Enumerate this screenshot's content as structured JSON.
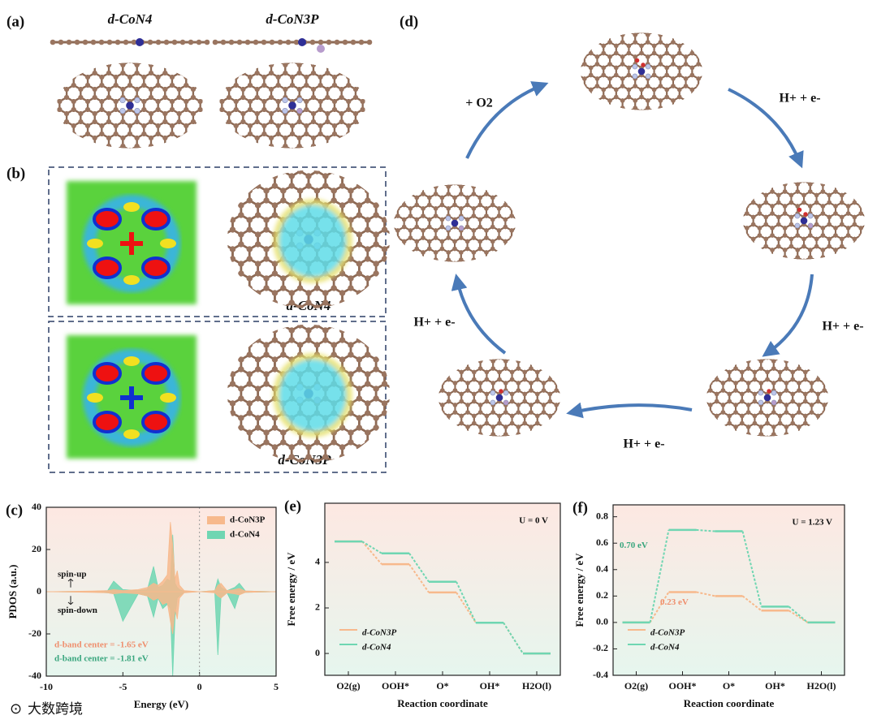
{
  "panels": {
    "a": {
      "label": "(a)",
      "titles": [
        "d-CoN4",
        "d-CoN3P"
      ]
    },
    "b": {
      "label": "(b)",
      "titles": [
        "d-CoN4",
        "d-CoN3P"
      ]
    },
    "d": {
      "label": "(d)",
      "steps": [
        "+ O2",
        "H+ + e-",
        "H+ + e-",
        "H+ + e-",
        "H+ + e-"
      ]
    }
  },
  "chart_data": [
    {
      "type": "pdos",
      "panel_label": "(c)",
      "xlabel": "Energy (eV)",
      "ylabel": "PDOS (a.u.)",
      "xlim": [
        -10,
        5
      ],
      "ylim": [
        -40,
        40
      ],
      "xticks": [
        -10,
        -5,
        0,
        5
      ],
      "yticks": [
        -40,
        -20,
        0,
        20,
        40
      ],
      "x": [
        -10,
        -7,
        -6,
        -5.6,
        -5,
        -4,
        -3.4,
        -3,
        -2.7,
        -2.4,
        -2.1,
        -1.9,
        -1.75,
        -1.6,
        -1.45,
        -1.3,
        -1,
        0,
        1,
        1.2,
        1.4,
        1.8,
        2.3,
        2.6,
        3,
        5
      ],
      "legend": "upper right",
      "series": [
        {
          "name": "d-CoN3P",
          "color": "#f7b98c",
          "values": [
            0,
            0.3,
            0.5,
            1,
            0.5,
            1,
            2,
            4,
            3,
            5,
            8,
            33,
            22,
            6,
            10,
            3,
            0.5,
            0,
            0.5,
            3,
            4,
            0.5,
            1,
            1.5,
            0.3,
            0
          ],
          "values_down": [
            0,
            -0.3,
            -0.5,
            -1,
            -0.5,
            -1,
            -2,
            -4,
            -3,
            -6,
            -5,
            -14,
            -20,
            -8,
            -13,
            -3,
            -0.5,
            0,
            -0.5,
            -2,
            -3,
            -0.5,
            -1,
            -1.5,
            -0.3,
            0
          ]
        },
        {
          "name": "d-CoN4",
          "color": "#6fd6b2",
          "values": [
            0,
            0.2,
            0.5,
            5,
            1,
            0.5,
            1,
            12,
            2,
            3,
            6,
            5,
            27,
            4,
            2,
            1,
            0.2,
            0,
            0.5,
            6,
            2,
            0.5,
            2,
            4,
            0.3,
            0
          ],
          "values_down": [
            0,
            -0.2,
            -0.5,
            -1,
            -14,
            -1,
            -2,
            -12,
            -3,
            -8,
            -6,
            -8,
            -40,
            -12,
            -3,
            -2,
            -0.3,
            0,
            -0.3,
            -30,
            -3,
            -0.5,
            -8,
            -1,
            -0.3,
            0
          ]
        }
      ],
      "annotations": [
        {
          "text": "spin-up"
        },
        {
          "text": "spin-down"
        },
        {
          "text": "d-band center = -1.65 eV",
          "color": "#ef8f6e"
        },
        {
          "text": "d-band center = -1.81 eV",
          "color": "#3aa67e"
        }
      ]
    },
    {
      "type": "step",
      "panel_label": "(e)",
      "condition": "U = 0 V",
      "xlabel": "Reaction coordinate",
      "ylabel": "Free energy / eV",
      "categories": [
        "O2(g)",
        "OOH*",
        "O*",
        "OH*",
        "H2O(l)"
      ],
      "ylim": [
        -0.96,
        6.6
      ],
      "yticks": [
        0,
        2,
        4
      ],
      "legend": "lower left",
      "series": [
        {
          "name": "d-CoN3P",
          "color": "#f7b98c",
          "values": [
            4.92,
            3.92,
            2.68,
            1.35,
            0
          ]
        },
        {
          "name": "d-CoN4",
          "color": "#6fd6b2",
          "values": [
            4.92,
            4.4,
            3.15,
            1.35,
            0
          ]
        }
      ],
      "annotations": []
    },
    {
      "type": "step",
      "panel_label": "(f)",
      "condition": "U = 1.23 V",
      "xlabel": "Reaction coordinate",
      "ylabel": "Free energy / eV",
      "categories": [
        "O2(g)",
        "OOH*",
        "O*",
        "OH*",
        "H2O(l)"
      ],
      "ylim": [
        -0.4,
        0.89
      ],
      "yticks": [
        -0.4,
        -0.2,
        {
          "value": 0,
          "label": "0.0"
        },
        0.2,
        0.4,
        0.6,
        0.8
      ],
      "legend": "lower left",
      "series": [
        {
          "name": "d-CoN3P",
          "color": "#f7b98c",
          "values": [
            0,
            0.23,
            0.2,
            0.09,
            0
          ]
        },
        {
          "name": "d-CoN4",
          "color": "#6fd6b2",
          "values": [
            0,
            0.7,
            0.69,
            0.12,
            0
          ]
        }
      ],
      "annotations": [
        {
          "text": "0.70 eV",
          "color": "#3aa67e"
        },
        {
          "text": "0.23 eV",
          "color": "#ef8f6e"
        }
      ]
    }
  ],
  "watermark": "大数跨境"
}
